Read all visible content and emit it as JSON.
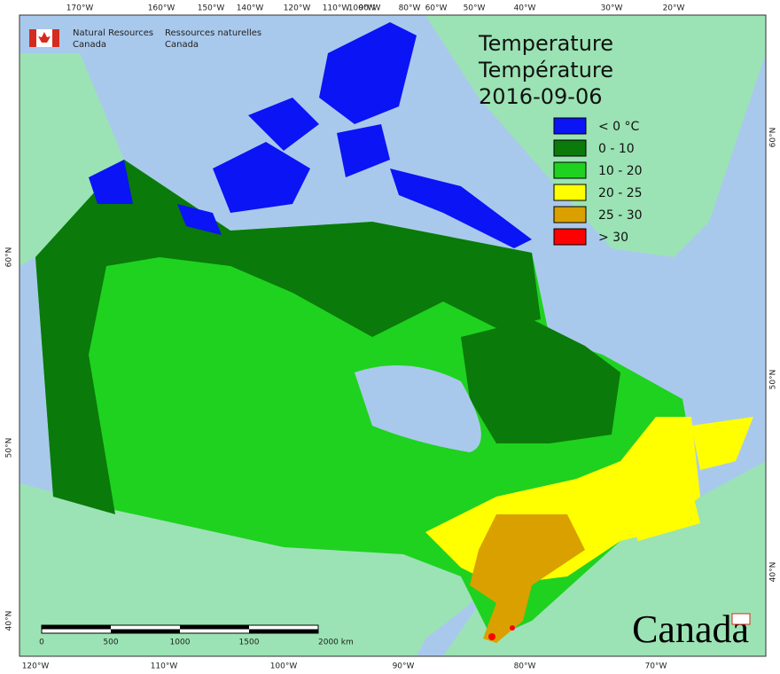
{
  "header": {
    "agency_en": [
      "Natural Resources",
      "Canada"
    ],
    "agency_fr": [
      "Ressources naturelles",
      "Canada"
    ]
  },
  "title": {
    "line1": "Temperature",
    "line2": "Température",
    "date": "2016-09-06"
  },
  "legend": [
    {
      "label": "< 0 °C",
      "color": "#0a14f5"
    },
    {
      "label": "0 - 10",
      "color": "#0a7a0a"
    },
    {
      "label": "10 - 20",
      "color": "#1fd21f"
    },
    {
      "label": "20 - 25",
      "color": "#ffff00"
    },
    {
      "label": "25 - 30",
      "color": "#daa000"
    },
    {
      "label": "> 30",
      "color": "#ff0000"
    }
  ],
  "graticule": {
    "top": [
      "170°W",
      "160°W",
      "150°W",
      "140°W",
      "120°W",
      "110°W",
      "100°W",
      "90°W",
      "80°W",
      "60°W",
      "50°W",
      "40°W",
      "30°W",
      "20°W"
    ],
    "bottom": [
      "120°W",
      "110°W",
      "100°W",
      "90°W",
      "80°W",
      "70°W"
    ],
    "left": [
      "60°N",
      "50°N",
      "40°N"
    ],
    "right": [
      "60°N",
      "50°N",
      "40°N"
    ]
  },
  "scale_bar": [
    "0",
    "500",
    "1000",
    "1500",
    "2000 km"
  ],
  "wordmark": "Canada"
}
